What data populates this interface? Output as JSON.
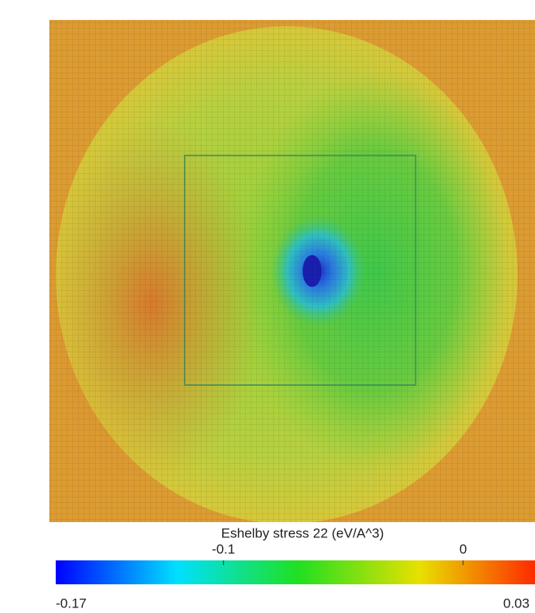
{
  "figure": {
    "colorbar": {
      "title": "Eshelby stress 22 (eV/A^3)",
      "clim": [
        -0.17,
        0.03
      ],
      "ticks": [
        -0.1,
        0
      ]
    }
  }
}
